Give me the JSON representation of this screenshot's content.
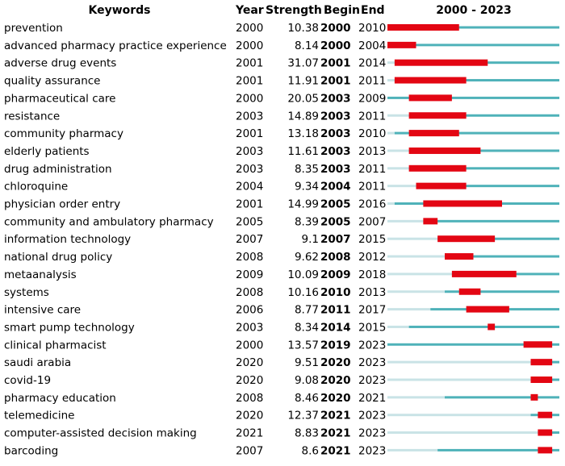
{
  "chart_data": {
    "type": "table",
    "title": "",
    "headers": {
      "keywords": "Keywords",
      "year": "Year",
      "strength": "Strength",
      "begin": "Begin",
      "end": "End",
      "range": "2000 - 2023"
    },
    "range_start": 2000,
    "range_end": 2023,
    "colors": {
      "burst": "#e30613",
      "active": "#4fb2b9",
      "inactive": "#c9e3e6"
    },
    "rows": [
      {
        "keyword": "prevention",
        "year": 2000,
        "strength": "10.38",
        "begin": 2000,
        "end": 2010
      },
      {
        "keyword": "advanced pharmacy practice experience",
        "year": 2000,
        "strength": "8.14",
        "begin": 2000,
        "end": 2004
      },
      {
        "keyword": "adverse drug events",
        "year": 2001,
        "strength": "31.07",
        "begin": 2001,
        "end": 2014
      },
      {
        "keyword": "quality assurance",
        "year": 2001,
        "strength": "11.91",
        "begin": 2001,
        "end": 2011
      },
      {
        "keyword": "pharmaceutical care",
        "year": 2000,
        "strength": "20.05",
        "begin": 2003,
        "end": 2009
      },
      {
        "keyword": "resistance",
        "year": 2003,
        "strength": "14.89",
        "begin": 2003,
        "end": 2011
      },
      {
        "keyword": "community pharmacy",
        "year": 2001,
        "strength": "13.18",
        "begin": 2003,
        "end": 2010
      },
      {
        "keyword": "elderly patients",
        "year": 2003,
        "strength": "11.61",
        "begin": 2003,
        "end": 2013
      },
      {
        "keyword": "drug administration",
        "year": 2003,
        "strength": "8.35",
        "begin": 2003,
        "end": 2011
      },
      {
        "keyword": "chloroquine",
        "year": 2004,
        "strength": "9.34",
        "begin": 2004,
        "end": 2011
      },
      {
        "keyword": "physician order entry",
        "year": 2001,
        "strength": "14.99",
        "begin": 2005,
        "end": 2016
      },
      {
        "keyword": "community and ambulatory pharmacy",
        "year": 2005,
        "strength": "8.39",
        "begin": 2005,
        "end": 2007
      },
      {
        "keyword": "information technology",
        "year": 2007,
        "strength": "9.1",
        "begin": 2007,
        "end": 2015
      },
      {
        "keyword": "national drug policy",
        "year": 2008,
        "strength": "9.62",
        "begin": 2008,
        "end": 2012
      },
      {
        "keyword": "metaanalysis",
        "year": 2009,
        "strength": "10.09",
        "begin": 2009,
        "end": 2018
      },
      {
        "keyword": "systems",
        "year": 2008,
        "strength": "10.16",
        "begin": 2010,
        "end": 2013
      },
      {
        "keyword": "intensive care",
        "year": 2006,
        "strength": "8.77",
        "begin": 2011,
        "end": 2017
      },
      {
        "keyword": "smart pump technology",
        "year": 2003,
        "strength": "8.34",
        "begin": 2014,
        "end": 2015
      },
      {
        "keyword": "clinical pharmacist",
        "year": 2000,
        "strength": "13.57",
        "begin": 2019,
        "end": 2023
      },
      {
        "keyword": "saudi arabia",
        "year": 2020,
        "strength": "9.51",
        "begin": 2020,
        "end": 2023
      },
      {
        "keyword": "covid-19",
        "year": 2020,
        "strength": "9.08",
        "begin": 2020,
        "end": 2023
      },
      {
        "keyword": "pharmacy education",
        "year": 2008,
        "strength": "8.46",
        "begin": 2020,
        "end": 2021
      },
      {
        "keyword": "telemedicine",
        "year": 2020,
        "strength": "12.37",
        "begin": 2021,
        "end": 2023
      },
      {
        "keyword": "computer-assisted decision making",
        "year": 2021,
        "strength": "8.83",
        "begin": 2021,
        "end": 2023
      },
      {
        "keyword": "barcoding",
        "year": 2007,
        "strength": "8.6",
        "begin": 2021,
        "end": 2023
      }
    ]
  }
}
